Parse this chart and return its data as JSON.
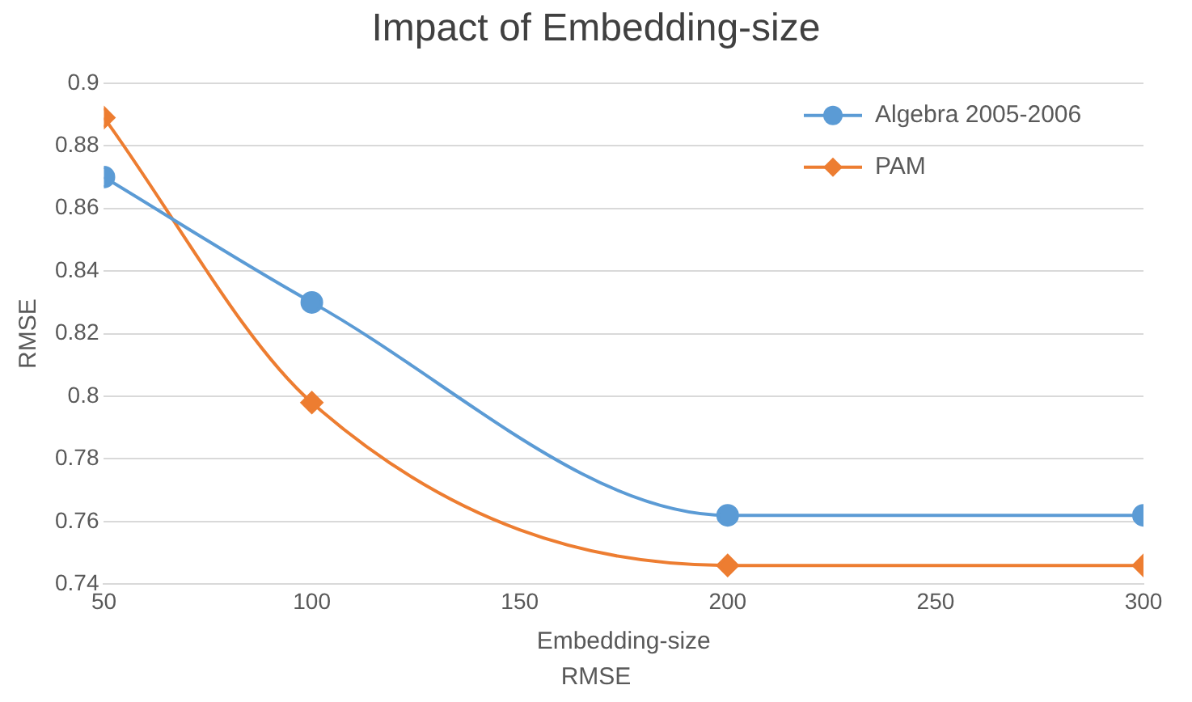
{
  "chart_data": {
    "type": "line",
    "title": "Impact of Embedding-size",
    "xlabel": "Embedding-size",
    "ylabel": "RMSE",
    "annotations": [
      "RMSE"
    ],
    "x": [
      50,
      100,
      200,
      300
    ],
    "series": [
      {
        "name": "Algebra 2005-2006",
        "color": "#5b9bd5",
        "marker": "circle",
        "values": [
          0.87,
          0.83,
          0.762,
          0.762
        ]
      },
      {
        "name": "PAM",
        "color": "#ed7d31",
        "marker": "diamond",
        "values": [
          0.889,
          0.798,
          0.746,
          0.746
        ]
      }
    ],
    "xlim": [
      50,
      300
    ],
    "xticks": [
      50,
      100,
      150,
      200,
      250,
      300
    ],
    "ylim": [
      0.74,
      0.9
    ],
    "yticks": [
      0.74,
      0.76,
      0.78,
      0.8,
      0.82,
      0.84,
      0.86,
      0.88,
      0.9
    ],
    "grid": "y",
    "legend": "top right",
    "line_style": "solid"
  }
}
